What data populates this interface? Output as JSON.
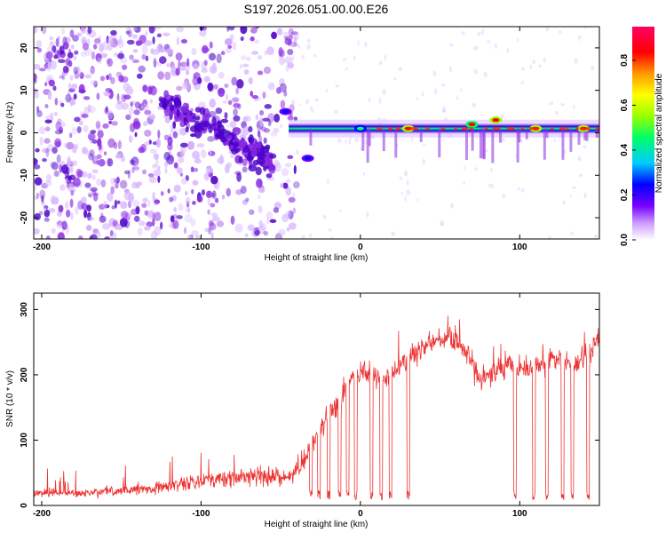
{
  "title": "S197.2026.051.00.00.E26",
  "colors": {
    "snr_line": "#ee3333",
    "spectrogram_faint": "#d9b8ff",
    "spectrogram_mid": "#8a2be2",
    "spectrogram_strong": "#4b00c8"
  },
  "chart_data": [
    {
      "type": "heatmap",
      "title": "S197.2026.051.00.00.E26",
      "xlabel": "Height of straight line (km)",
      "ylabel": "Frequency (Hz)",
      "xlim": [
        -205,
        150
      ],
      "ylim": [
        -25,
        25
      ],
      "x_ticks": [
        -200,
        -100,
        0,
        100
      ],
      "x_tick_labels": [
        "-200",
        "-100",
        "0",
        "100"
      ],
      "y_ticks": [
        -20,
        -10,
        0,
        10,
        20
      ],
      "y_tick_labels": [
        "-20",
        "-10",
        "0",
        "10",
        "20"
      ],
      "colorbar": {
        "label": "Normalized spectral amplitude",
        "range": [
          0.0,
          0.95
        ],
        "ticks": [
          0.0,
          0.2,
          0.4,
          0.6,
          0.8
        ],
        "tick_labels": [
          "0.0",
          "0.2",
          "0.4",
          "0.6",
          "0.8"
        ],
        "colormap": [
          "#ffffff",
          "#cc99ff",
          "#7700ff",
          "#0000ff",
          "#00ccff",
          "#00ff66",
          "#99ff00",
          "#ffff00",
          "#ff9900",
          "#ff0000",
          "#ff0066"
        ]
      },
      "band": {
        "center_frequency": 1,
        "start_height": -45,
        "end_height": 150
      },
      "features": [
        {
          "x": -47,
          "y": 5,
          "amplitude": 0.3
        },
        {
          "x": -33,
          "y": -6,
          "amplitude": 0.25
        },
        {
          "x": 0,
          "y": 1,
          "amplitude": 0.5
        },
        {
          "x": 30,
          "y": 1,
          "amplitude": 0.9
        },
        {
          "x": 70,
          "y": 2,
          "amplitude": 0.85
        },
        {
          "x": 85,
          "y": 3,
          "amplitude": 0.9
        },
        {
          "x": 110,
          "y": 1,
          "amplitude": 0.9
        },
        {
          "x": 140,
          "y": 1,
          "amplitude": 0.9
        }
      ]
    },
    {
      "type": "line",
      "xlabel": "Height of straight line (km)",
      "ylabel": "SNR (10 * v/v)",
      "xlim": [
        -205,
        150
      ],
      "ylim": [
        0,
        325
      ],
      "x_ticks": [
        -200,
        -100,
        0,
        100
      ],
      "x_tick_labels": [
        "-200",
        "-100",
        "0",
        "100"
      ],
      "y_ticks": [
        0,
        100,
        200,
        300
      ],
      "y_tick_labels": [
        "0",
        "100",
        "200",
        "300"
      ],
      "series": [
        {
          "name": "SNR",
          "x": [
            -205,
            -180,
            -150,
            -120,
            -100,
            -80,
            -60,
            -45,
            -35,
            -25,
            -15,
            -5,
            5,
            15,
            25,
            35,
            45,
            55,
            60,
            65,
            75,
            85,
            95,
            105,
            115,
            125,
            135,
            145,
            150
          ],
          "y": [
            20,
            18,
            22,
            30,
            38,
            42,
            48,
            40,
            70,
            120,
            150,
            200,
            205,
            190,
            215,
            235,
            250,
            255,
            255,
            240,
            190,
            205,
            215,
            205,
            220,
            225,
            215,
            240,
            255
          ]
        }
      ],
      "dropouts": [
        -31,
        -26,
        -20,
        -13,
        -8,
        -3,
        7,
        13,
        19,
        30,
        97,
        109,
        117,
        127,
        133,
        143
      ]
    }
  ]
}
